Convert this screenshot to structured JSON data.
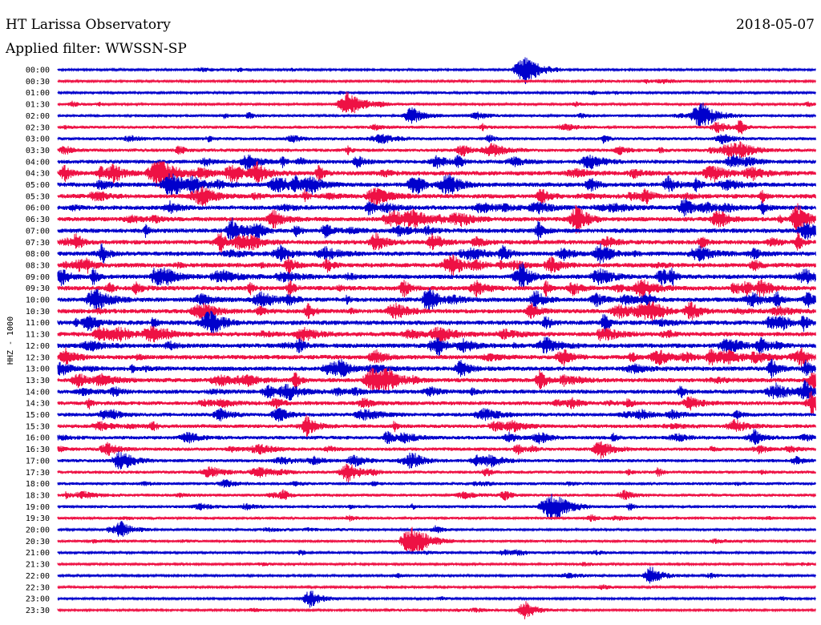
{
  "header": {
    "title": "HT Larissa Observatory",
    "date": "2018-05-07",
    "filter": "Applied filter: WWSSN-SP"
  },
  "chart_data": {
    "type": "line",
    "subtype": "helicorder",
    "ylabel": "HHZ - 1000",
    "rows": [
      "00:00",
      "00:30",
      "01:00",
      "01:30",
      "02:00",
      "02:30",
      "03:00",
      "03:30",
      "04:00",
      "04:30",
      "05:00",
      "05:30",
      "06:00",
      "06:30",
      "07:00",
      "07:30",
      "08:00",
      "08:30",
      "09:00",
      "09:30",
      "10:00",
      "10:30",
      "11:00",
      "11:30",
      "12:00",
      "12:30",
      "13:00",
      "13:30",
      "14:00",
      "14:30",
      "15:00",
      "15:30",
      "16:00",
      "16:30",
      "17:00",
      "17:30",
      "18:00",
      "18:30",
      "19:00",
      "19:30",
      "20:00",
      "20:30",
      "21:00",
      "21:30",
      "22:00",
      "22:30",
      "23:00",
      "23:30"
    ],
    "row_minutes": 30,
    "colors": [
      "#0000cc",
      "#ee1144"
    ],
    "activity": [
      0.25,
      0.3,
      0.3,
      0.35,
      0.4,
      0.55,
      0.6,
      0.7,
      0.85,
      1.0,
      1.0,
      1.0,
      1.0,
      1.0,
      1.0,
      1.0,
      1.0,
      1.0,
      1.0,
      1.0,
      1.0,
      1.0,
      1.0,
      1.0,
      1.0,
      1.0,
      1.0,
      0.95,
      0.9,
      0.85,
      0.8,
      0.8,
      0.75,
      0.7,
      0.65,
      0.6,
      0.55,
      0.55,
      0.5,
      0.45,
      0.4,
      0.4,
      0.35,
      0.3,
      0.3,
      0.3,
      0.25,
      0.25
    ],
    "events": [
      {
        "row": 0,
        "minute": 18.5,
        "amp": 1.0
      },
      {
        "row": 3,
        "minute": 11.5,
        "amp": 0.9
      },
      {
        "row": 4,
        "minute": 14.0,
        "amp": 0.5
      },
      {
        "row": 4,
        "minute": 25.5,
        "amp": 0.9
      },
      {
        "row": 9,
        "minute": 4.0,
        "amp": 1.0
      },
      {
        "row": 10,
        "minute": 4.5,
        "amp": 0.8
      },
      {
        "row": 17,
        "minute": 15.5,
        "amp": 0.5
      },
      {
        "row": 20,
        "minute": 1.5,
        "amp": 0.7
      },
      {
        "row": 27,
        "minute": 12.5,
        "amp": 0.8
      },
      {
        "row": 33,
        "minute": 21.5,
        "amp": 0.5
      },
      {
        "row": 34,
        "minute": 2.5,
        "amp": 0.6
      },
      {
        "row": 35,
        "minute": 11.5,
        "amp": 0.6
      },
      {
        "row": 38,
        "minute": 19.5,
        "amp": 0.9
      },
      {
        "row": 40,
        "minute": 2.5,
        "amp": 0.5
      },
      {
        "row": 41,
        "minute": 14.0,
        "amp": 1.0
      },
      {
        "row": 44,
        "minute": 23.5,
        "amp": 0.5
      },
      {
        "row": 46,
        "minute": 10.0,
        "amp": 0.5
      },
      {
        "row": 47,
        "minute": 18.5,
        "amp": 0.5
      }
    ]
  }
}
